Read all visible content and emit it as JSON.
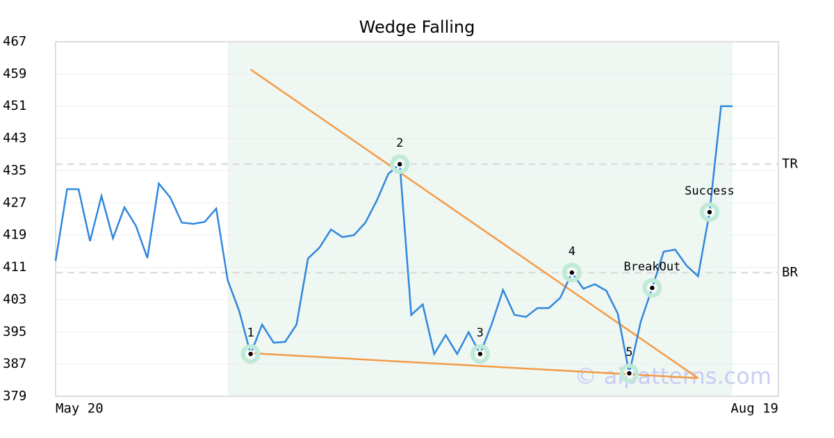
{
  "chart_data": {
    "type": "line",
    "title": "Wedge Falling",
    "categories": [
      "May 20",
      null,
      null,
      null,
      null,
      null,
      null,
      null,
      null,
      null,
      null,
      null,
      null,
      null,
      null,
      null,
      null,
      null,
      null,
      null,
      null,
      null,
      null,
      null,
      null,
      null,
      null,
      null,
      null,
      null,
      null,
      null,
      null,
      null,
      null,
      null,
      null,
      null,
      null,
      null,
      null,
      null,
      null,
      null,
      null,
      null,
      null,
      null,
      null,
      null,
      null,
      null,
      null,
      null,
      null,
      null,
      null,
      null,
      null,
      null,
      null,
      null,
      null,
      "Aug 19"
    ],
    "series": [
      {
        "color": "#2f86dd",
        "values": [
          412.6,
          430.4,
          430.4,
          417.5,
          428.7,
          418.2,
          425.9,
          421.3,
          413.3,
          431.8,
          428.3,
          422.1,
          421.8,
          422.3,
          425.6,
          407.8,
          400.2,
          389.5,
          396.8,
          392.3,
          392.5,
          396.8,
          413.2,
          415.9,
          420.4,
          418.5,
          419.0,
          422.1,
          427.6,
          434.2,
          436.6,
          399.2,
          401.8,
          389.5,
          394.2,
          389.5,
          394.9,
          389.5,
          396.8,
          405.4,
          399.2,
          398.7,
          400.9,
          400.9,
          403.5,
          409.7,
          405.7,
          406.8,
          405.2,
          399.5,
          384.7,
          397.5,
          405.9,
          414.9,
          415.4,
          411.4,
          408.8,
          424.7,
          451.0,
          451.0,
          null,
          null,
          null,
          null
        ]
      }
    ],
    "pattern_points": {
      "color": "#bfead8",
      "values": [
        null,
        null,
        null,
        null,
        null,
        null,
        null,
        null,
        null,
        null,
        null,
        null,
        null,
        null,
        null,
        null,
        null,
        389.5,
        null,
        null,
        null,
        null,
        null,
        null,
        null,
        null,
        null,
        null,
        null,
        null,
        436.6,
        null,
        null,
        null,
        null,
        null,
        null,
        389.5,
        null,
        null,
        null,
        null,
        null,
        null,
        null,
        409.7,
        null,
        null,
        null,
        null,
        384.7,
        null,
        405.9,
        null,
        null,
        null,
        null,
        424.7,
        null,
        null,
        null,
        null,
        null,
        null
      ],
      "labels": [
        null,
        null,
        null,
        null,
        null,
        null,
        null,
        null,
        null,
        null,
        null,
        null,
        null,
        null,
        null,
        null,
        null,
        "1",
        null,
        null,
        null,
        null,
        null,
        null,
        null,
        null,
        null,
        null,
        null,
        null,
        "2",
        null,
        null,
        null,
        null,
        null,
        null,
        "3",
        null,
        null,
        null,
        null,
        null,
        null,
        null,
        "4",
        null,
        null,
        null,
        null,
        "5",
        null,
        "BreakOut",
        null,
        null,
        null,
        null,
        "Success",
        null,
        null,
        null,
        null,
        null,
        null
      ]
    },
    "trendlines": [
      {
        "color": "#f59a45",
        "x": [
          17,
          56
        ],
        "values": [
          460.1,
          383.5
        ]
      },
      {
        "color": "#f59a45",
        "x": [
          17,
          56
        ],
        "values": [
          389.7,
          383.5
        ]
      }
    ],
    "levels": [
      {
        "label": "TR",
        "value": 436.6
      },
      {
        "label": "BR",
        "value": 409.7
      }
    ],
    "highlight_x": [
      15,
      59
    ],
    "highlight_color": "#eef7f2",
    "watermark": "© aipatterns.com",
    "ylim": [
      379,
      467
    ],
    "yticks": [
      379,
      387,
      395,
      403,
      411,
      419,
      427,
      435,
      443,
      451,
      459,
      467
    ],
    "grid": true
  }
}
